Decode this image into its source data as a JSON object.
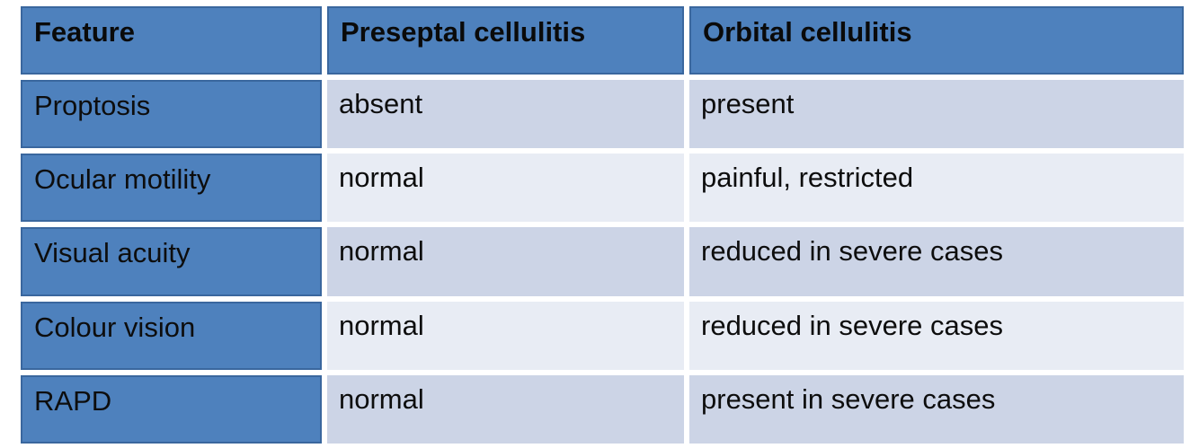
{
  "table": {
    "columns": [
      {
        "label": "Feature"
      },
      {
        "label": "Preseptal cellulitis"
      },
      {
        "label": "Orbital cellulitis"
      }
    ],
    "rows": [
      {
        "feature": "Proptosis",
        "preseptal": "absent",
        "orbital": "present"
      },
      {
        "feature": "Ocular motility",
        "preseptal": "normal",
        "orbital": "painful, restricted"
      },
      {
        "feature": "Visual acuity",
        "preseptal": "normal",
        "orbital": "reduced in severe cases"
      },
      {
        "feature": "Colour vision",
        "preseptal": "normal",
        "orbital": "reduced in severe cases"
      },
      {
        "feature": "RAPD",
        "preseptal": "normal",
        "orbital": "present in severe cases"
      }
    ],
    "colors": {
      "header_bg": "#4E81BD",
      "header_border": "#3A679E",
      "band_dark": "#CCD4E6",
      "band_light": "#E8ECF4",
      "separator": "#FFFFFF",
      "text": "#0D0D0D"
    }
  }
}
